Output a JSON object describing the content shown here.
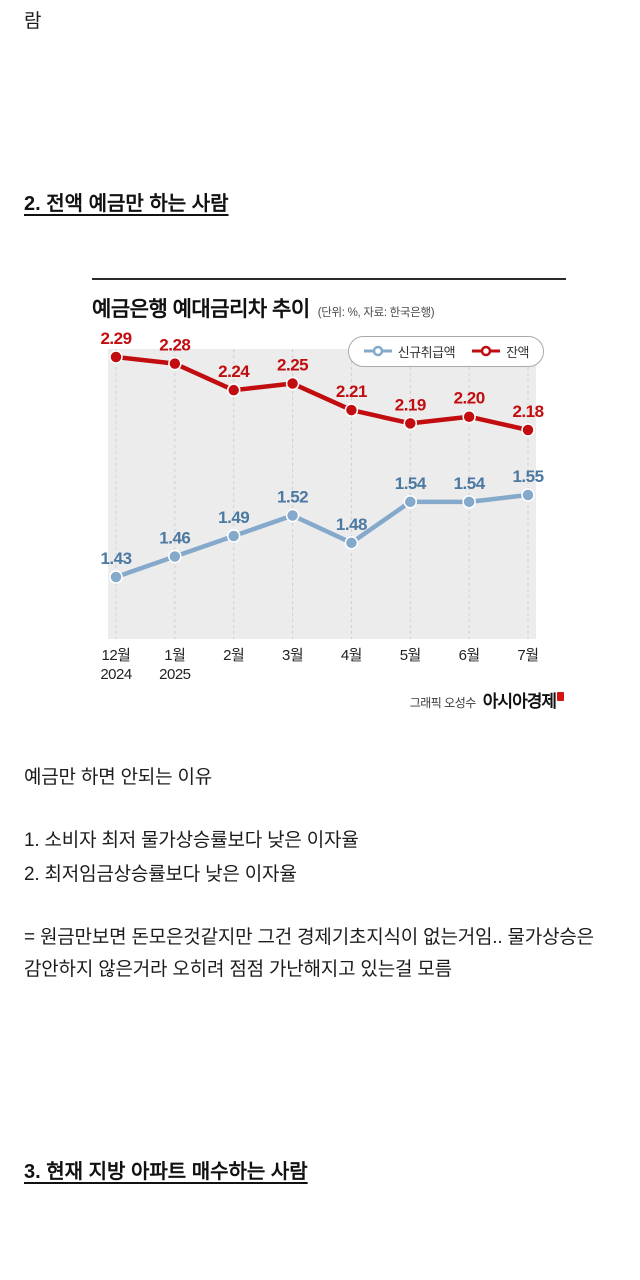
{
  "page": {
    "top_fragment": "람",
    "heading_2": "2. 전액 예금만 하는 사람",
    "heading_3": "3. 현재 지방 아파트 매수하는 사람"
  },
  "chart": {
    "title": "예금은행 예대금리차 추이",
    "unit_note": "(단위: %, 자료: 한국은행)",
    "credit_prefix": "그래픽 오성수",
    "credit_brand": "아시아경제",
    "legend": [
      {
        "label": "신규취급액",
        "color": "#84a9cb"
      },
      {
        "label": "잔액",
        "color": "#c20d10"
      }
    ]
  },
  "chart_data": {
    "type": "line",
    "title": "예금은행 예대금리차 추이",
    "unit": "%",
    "source": "한국은행",
    "categories": [
      [
        "12월",
        "2024"
      ],
      [
        "1월",
        "2025"
      ],
      [
        "2월"
      ],
      [
        "3월"
      ],
      [
        "4월"
      ],
      [
        "5월"
      ],
      [
        "6월"
      ],
      [
        "7월"
      ]
    ],
    "series": [
      {
        "name": "신규취급액",
        "color": "#84a9cb",
        "label_color": "#4b79a1",
        "values": [
          1.43,
          1.46,
          1.49,
          1.52,
          1.48,
          1.54,
          1.54,
          1.55
        ]
      },
      {
        "name": "잔액",
        "color": "#c20d10",
        "label_color": "#c20d10",
        "values": [
          2.29,
          2.28,
          2.24,
          2.25,
          2.21,
          2.19,
          2.2,
          2.18
        ]
      }
    ],
    "grid": "vertical-dashed",
    "legend_position": "top-right"
  },
  "body": {
    "p1": "예금만 하면 안되는 이유",
    "reason_1": "1. 소비자 최저 물가상승률보다 낮은 이자율",
    "reason_2": "2. 최저임금상승률보다 낮은 이자율",
    "p3": "= 원금만보면 돈모은것같지만 그건 경제기초지식이 없는거임.. 물가상승은 감안하지 않은거라 오히려 점점 가난해지고 있는걸 모름"
  }
}
